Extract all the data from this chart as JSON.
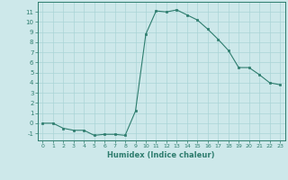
{
  "x": [
    0,
    1,
    2,
    3,
    4,
    5,
    6,
    7,
    8,
    9,
    10,
    11,
    12,
    13,
    14,
    15,
    16,
    17,
    18,
    19,
    20,
    21,
    22,
    23
  ],
  "y": [
    0,
    0,
    -0.5,
    -0.7,
    -0.7,
    -1.2,
    -1.1,
    -1.1,
    -1.2,
    1.2,
    8.8,
    11.1,
    11.0,
    11.2,
    10.7,
    10.2,
    9.3,
    8.3,
    7.2,
    5.5,
    5.5,
    4.8,
    4.0,
    3.8
  ],
  "line_color": "#2e7d6e",
  "bg_color": "#cde8ea",
  "grid_color": "#aad4d6",
  "xlabel": "Humidex (Indice chaleur)",
  "xlim": [
    -0.5,
    23.5
  ],
  "ylim": [
    -1.7,
    12.0
  ],
  "yticks": [
    -1,
    0,
    1,
    2,
    3,
    4,
    5,
    6,
    7,
    8,
    9,
    10,
    11
  ],
  "xticks": [
    0,
    1,
    2,
    3,
    4,
    5,
    6,
    7,
    8,
    9,
    10,
    11,
    12,
    13,
    14,
    15,
    16,
    17,
    18,
    19,
    20,
    21,
    22,
    23
  ]
}
